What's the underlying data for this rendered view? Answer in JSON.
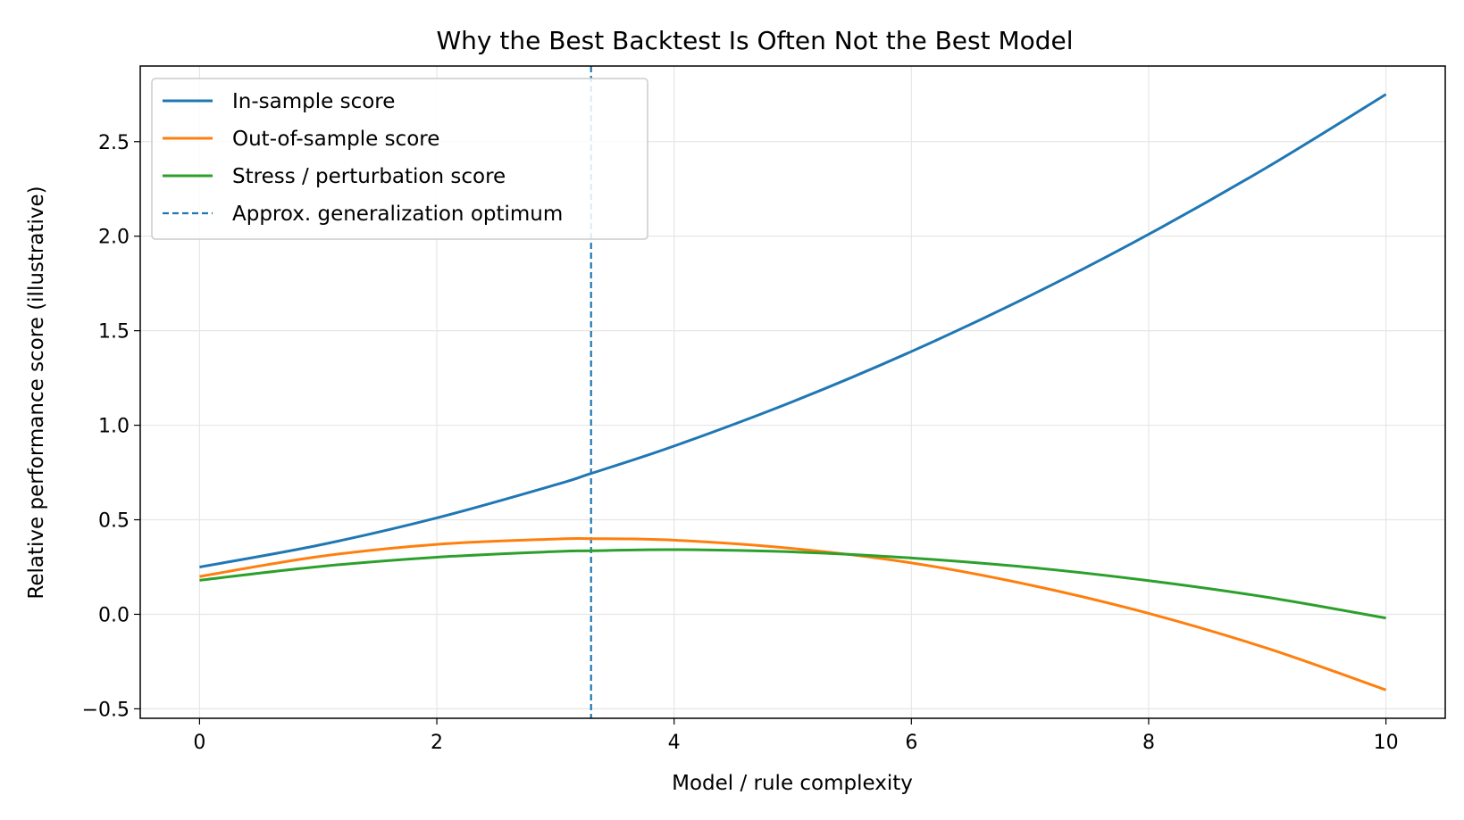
{
  "chart_data": {
    "type": "line",
    "title": "Why the Best Backtest Is Often Not the Best Model",
    "xlabel": "Model / rule complexity",
    "ylabel": "Relative performance score (illustrative)",
    "xlim": [
      -0.5,
      10.5
    ],
    "ylim": [
      -0.55,
      2.9
    ],
    "xticks": [
      0,
      2,
      4,
      6,
      8,
      10
    ],
    "xtick_labels": [
      "0",
      "2",
      "4",
      "6",
      "8",
      "10"
    ],
    "yticks": [
      -0.5,
      0.0,
      0.5,
      1.0,
      1.5,
      2.0,
      2.5
    ],
    "ytick_labels": [
      "−0.5",
      "0.0",
      "0.5",
      "1.0",
      "1.5",
      "2.0",
      "2.5"
    ],
    "grid": true,
    "legend_position": "top-left",
    "x": [
      0,
      1,
      2,
      3,
      3.3,
      4,
      5,
      6,
      7,
      8,
      9,
      10
    ],
    "series": [
      {
        "name": "In-sample score",
        "color": "#1f77b4",
        "style": "solid",
        "values": [
          0.25,
          0.365,
          0.51,
          0.685,
          0.745,
          0.89,
          1.125,
          1.39,
          1.685,
          2.01,
          2.365,
          2.75
        ]
      },
      {
        "name": "Out-of-sample score",
        "color": "#ff7f0e",
        "style": "solid",
        "values": [
          0.2,
          0.305,
          0.37,
          0.398,
          0.4,
          0.392,
          0.348,
          0.272,
          0.155,
          0.005,
          -0.18,
          -0.4
        ]
      },
      {
        "name": "Stress / perturbation score",
        "color": "#2ca02c",
        "style": "solid",
        "values": [
          0.18,
          0.252,
          0.302,
          0.332,
          0.336,
          0.342,
          0.33,
          0.298,
          0.248,
          0.178,
          0.09,
          -0.02
        ]
      }
    ],
    "vline": {
      "name": "Approx. generalization optimum",
      "x": 3.3,
      "color": "#1f77b4",
      "style": "dashed"
    }
  }
}
